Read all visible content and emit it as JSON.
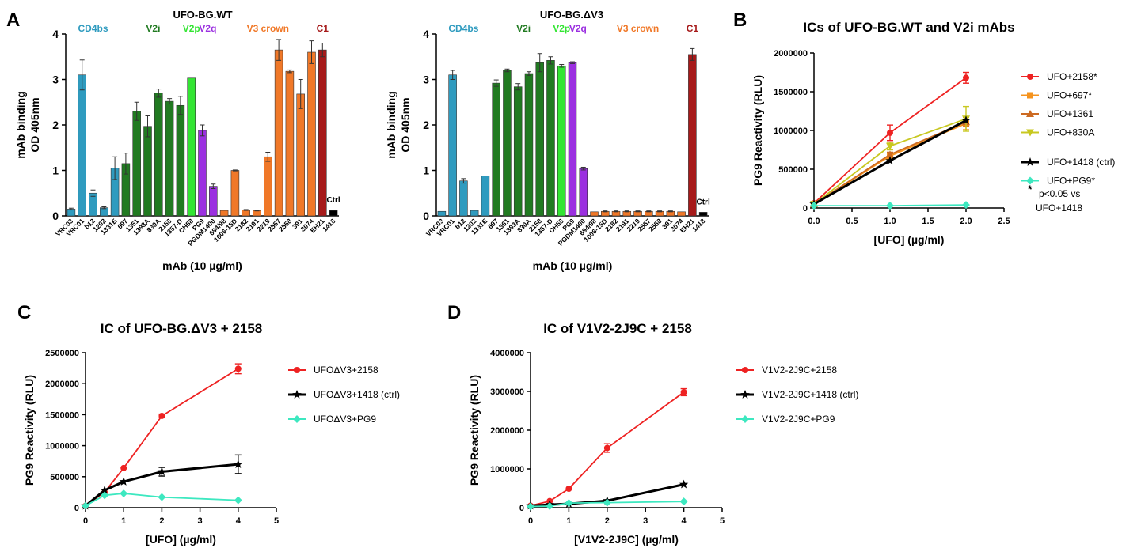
{
  "panel_letters": {
    "A": "A",
    "B": "B",
    "C": "C",
    "D": "D"
  },
  "colors": {
    "CD4bs": "#2f9bbf",
    "V2i": "#217a21",
    "V2p": "#33e533",
    "V2q": "#9b30e0",
    "V3 crown": "#f07828",
    "C1": "#a61a1a",
    "Ctrl": "#000000",
    "red": "#ee2222",
    "orange": "#f5931e",
    "darkorange": "#cc6a22",
    "yellow": "#c8c820",
    "black": "#000000",
    "cyan": "#3de8c0"
  },
  "epitope_labels": [
    {
      "text": "CD4bs",
      "group": "CD4bs"
    },
    {
      "text": "V2i",
      "group": "V2i"
    },
    {
      "text": "V2p",
      "group": "V2p"
    },
    {
      "text": "V2q",
      "group": "V2q"
    },
    {
      "text": "V3 crown",
      "group": "V3 crown"
    },
    {
      "text": "C1",
      "group": "C1"
    }
  ],
  "chart_data": [
    {
      "id": "A1",
      "type": "bar",
      "title": "UFO-BG.WT",
      "ylabel_line1": "mAb binding",
      "ylabel_line2": "OD 405nm",
      "xlabel": "mAb (10 µg/ml)",
      "ylim": [
        0,
        4
      ],
      "yticks": [
        "0",
        "1",
        "2",
        "3",
        "4"
      ],
      "ctrl_label": "Ctrl",
      "categories": [
        "VRC03",
        "VRC01",
        "b12",
        "1202",
        "1331E",
        "697",
        "1361",
        "1393A",
        "830A",
        "2158",
        "1357-D",
        "CH58",
        "PG9",
        "PGDM1400",
        "694/98",
        "1006-15D",
        "2182",
        "2191",
        "2219",
        "2557",
        "2558",
        "391",
        "3074",
        "EH21",
        "1418"
      ],
      "groups": [
        "CD4bs",
        "CD4bs",
        "CD4bs",
        "CD4bs",
        "CD4bs",
        "V2i",
        "V2i",
        "V2i",
        "V2i",
        "V2i",
        "V2i",
        "V2p",
        "V2q",
        "V2q",
        "V3 crown",
        "V3 crown",
        "V3 crown",
        "V3 crown",
        "V3 crown",
        "V3 crown",
        "V3 crown",
        "V3 crown",
        "V3 crown",
        "C1",
        "Ctrl"
      ],
      "values": [
        0.15,
        3.1,
        0.5,
        0.18,
        1.05,
        1.15,
        2.3,
        1.97,
        2.7,
        2.52,
        2.43,
        3.03,
        1.88,
        0.65,
        0.12,
        1.0,
        0.13,
        0.12,
        1.3,
        3.65,
        3.18,
        2.68,
        3.6,
        3.65,
        0.12
      ],
      "errors": [
        0.02,
        0.33,
        0.07,
        0.02,
        0.25,
        0.23,
        0.2,
        0.23,
        0.09,
        0.06,
        0.2,
        0.0,
        0.12,
        0.05,
        0.0,
        0.01,
        0.01,
        0.01,
        0.1,
        0.23,
        0.03,
        0.32,
        0.25,
        0.15,
        0.0
      ]
    },
    {
      "id": "A2",
      "type": "bar",
      "title": "UFO-BG.ΔV3",
      "ylabel_line1": "mAb binding",
      "ylabel_line2": "OD 405nm",
      "xlabel": "mAb (10 µg/ml)",
      "ylim": [
        0,
        4
      ],
      "yticks": [
        "0",
        "1",
        "2",
        "3",
        "4"
      ],
      "ctrl_label": "Ctrl",
      "categories": [
        "VRC03",
        "VRC01",
        "b12",
        "1202",
        "1331E",
        "697",
        "1361",
        "1393A",
        "830A",
        "2158",
        "1357-D",
        "CH58",
        "PG9",
        "PGDM1400",
        "694/98",
        "1006-15D",
        "2182",
        "2191",
        "2219",
        "2557",
        "2558",
        "391",
        "3074",
        "EH21",
        "1418"
      ],
      "groups": [
        "CD4bs",
        "CD4bs",
        "CD4bs",
        "CD4bs",
        "CD4bs",
        "V2i",
        "V2i",
        "V2i",
        "V2i",
        "V2i",
        "V2i",
        "V2p",
        "V2q",
        "V2q",
        "V3 crown",
        "V3 crown",
        "V3 crown",
        "V3 crown",
        "V3 crown",
        "V3 crown",
        "V3 crown",
        "V3 crown",
        "V3 crown",
        "C1",
        "Ctrl"
      ],
      "values": [
        0.1,
        3.1,
        0.77,
        0.12,
        0.88,
        2.92,
        3.2,
        2.84,
        3.13,
        3.37,
        3.42,
        3.3,
        3.37,
        1.04,
        0.09,
        0.1,
        0.1,
        0.1,
        0.1,
        0.1,
        0.1,
        0.1,
        0.09,
        3.55,
        0.08
      ],
      "errors": [
        0.0,
        0.1,
        0.05,
        0.0,
        0.0,
        0.07,
        0.03,
        0.07,
        0.04,
        0.2,
        0.08,
        0.03,
        0.02,
        0.03,
        0.0,
        0.01,
        0.01,
        0.01,
        0.01,
        0.01,
        0.01,
        0.01,
        0.0,
        0.13,
        0.0
      ]
    },
    {
      "id": "B",
      "type": "line",
      "title": "ICs of UFO-BG.WT and V2i mAbs",
      "ylabel": "PG9 Reactivity (RLU)",
      "xlabel": "[UFO] (µg/ml)",
      "xlim": [
        0,
        2.5
      ],
      "xticks": [
        "0.0",
        "0.5",
        "1.0",
        "1.5",
        "2.0",
        "2.5"
      ],
      "ylim": [
        0,
        2000000
      ],
      "yticks": [
        "0",
        "500000",
        "1000000",
        "1500000",
        "2000000"
      ],
      "series": [
        {
          "name": "UFO+2158*",
          "color": "#ee2222",
          "marker": "circle",
          "x": [
            0,
            1,
            2
          ],
          "y": [
            60000,
            970000,
            1680000
          ],
          "err": [
            0,
            100000,
            70000
          ]
        },
        {
          "name": "UFO+697*",
          "color": "#f5931e",
          "marker": "square",
          "x": [
            0,
            1,
            2
          ],
          "y": [
            50000,
            670000,
            1090000
          ],
          "err": [
            0,
            40000,
            80000
          ]
        },
        {
          "name": "UFO+1361",
          "color": "#cc6a22",
          "marker": "triangle-up",
          "x": [
            0,
            1,
            2
          ],
          "y": [
            50000,
            690000,
            1110000
          ],
          "err": [
            0,
            30000,
            60000
          ]
        },
        {
          "name": "UFO+830A",
          "color": "#c8c820",
          "marker": "triangle-down",
          "x": [
            0,
            1,
            2
          ],
          "y": [
            50000,
            800000,
            1150000
          ],
          "err": [
            0,
            50000,
            160000
          ]
        },
        {
          "name": "UFO+1418  (ctrl)",
          "color": "#000000",
          "marker": "star",
          "x": [
            0,
            1,
            2
          ],
          "y": [
            50000,
            610000,
            1130000
          ],
          "err": [
            0,
            0,
            0
          ]
        },
        {
          "name": "UFO+PG9*",
          "color": "#3de8c0",
          "marker": "diamond",
          "x": [
            0,
            1,
            2
          ],
          "y": [
            30000,
            30000,
            40000
          ],
          "err": [
            0,
            0,
            0
          ]
        }
      ],
      "note_line1": "p<0.05 vs",
      "note_line2": "UFO+1418",
      "note_star": "*"
    },
    {
      "id": "C",
      "type": "line",
      "title": "IC of UFO-BG.ΔV3 + 2158",
      "ylabel": "PG9 Reactivity (RLU)",
      "xlabel": "[UFO] (µg/ml)",
      "xlim": [
        0,
        5
      ],
      "xticks": [
        "0",
        "1",
        "2",
        "3",
        "4",
        "5"
      ],
      "ylim": [
        0,
        2500000
      ],
      "yticks": [
        "0",
        "500000",
        "1000000",
        "1500000",
        "2000000",
        "2500000"
      ],
      "series": [
        {
          "name": "UFOΔV3+2158",
          "color": "#ee2222",
          "marker": "circle",
          "x": [
            0,
            0.5,
            1,
            2,
            4
          ],
          "y": [
            30000,
            250000,
            640000,
            1480000,
            2240000
          ],
          "err": [
            0,
            0,
            0,
            30000,
            80000
          ]
        },
        {
          "name": "UFOΔV3+1418 (ctrl)",
          "color": "#000000",
          "marker": "star",
          "x": [
            0,
            0.5,
            1,
            2,
            4
          ],
          "y": [
            30000,
            280000,
            420000,
            580000,
            700000
          ],
          "err": [
            0,
            0,
            0,
            70000,
            150000
          ]
        },
        {
          "name": "UFOΔV3+PG9",
          "color": "#3de8c0",
          "marker": "diamond",
          "x": [
            0,
            0.5,
            1,
            2,
            4
          ],
          "y": [
            30000,
            200000,
            230000,
            170000,
            120000
          ],
          "err": [
            0,
            0,
            0,
            0,
            0
          ]
        }
      ]
    },
    {
      "id": "D",
      "type": "line",
      "title": "IC of V1V2-2J9C + 2158",
      "ylabel": "PG9 Reactivity (RLU)",
      "xlabel": "[V1V2-2J9C] (µg/ml)",
      "xlim": [
        0,
        5
      ],
      "xticks": [
        "0",
        "1",
        "2",
        "3",
        "4",
        "5"
      ],
      "ylim": [
        0,
        4000000
      ],
      "yticks": [
        "0",
        "1000000",
        "2000000",
        "3000000",
        "4000000"
      ],
      "series": [
        {
          "name": "V1V2-2J9C+2158",
          "color": "#ee2222",
          "marker": "circle",
          "x": [
            0,
            0.5,
            1,
            2,
            4
          ],
          "y": [
            50000,
            170000,
            490000,
            1540000,
            2980000
          ],
          "err": [
            0,
            0,
            0,
            110000,
            90000
          ]
        },
        {
          "name": "V1V2-2J9C+1418  (ctrl)",
          "color": "#000000",
          "marker": "star",
          "x": [
            0,
            0.5,
            1,
            2,
            4
          ],
          "y": [
            50000,
            80000,
            100000,
            180000,
            600000
          ],
          "err": [
            0,
            0,
            0,
            0,
            0
          ]
        },
        {
          "name": "V1V2-2J9C+PG9",
          "color": "#3de8c0",
          "marker": "diamond",
          "x": [
            0,
            0.5,
            1,
            2,
            4
          ],
          "y": [
            30000,
            40000,
            120000,
            130000,
            160000
          ],
          "err": [
            0,
            0,
            0,
            0,
            0
          ]
        }
      ]
    }
  ]
}
